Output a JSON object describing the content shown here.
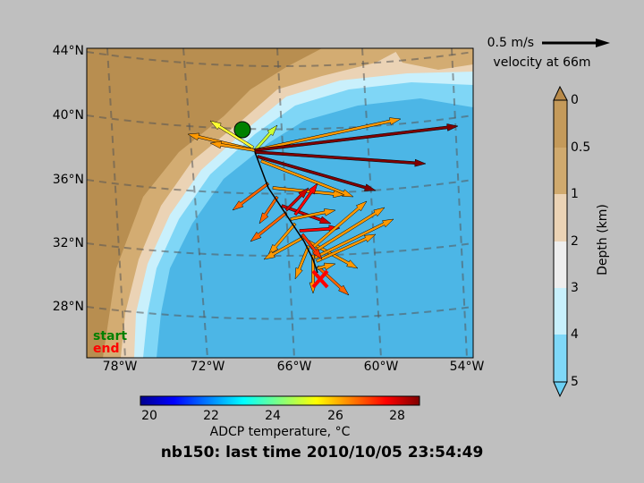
{
  "map": {
    "latitude_labels": [
      "44°N",
      "40°N",
      "36°N",
      "32°N",
      "28°N"
    ],
    "longitude_labels": [
      "78°W",
      "72°W",
      "66°W",
      "60°W",
      "54°W"
    ],
    "legend": {
      "start": "start",
      "end": "end"
    },
    "scale": {
      "label": "0.5 m/s",
      "caption": "velocity at 66m"
    },
    "depth_colorbar": {
      "label": "Depth (km)",
      "ticks": [
        "0",
        "0.5",
        "1",
        "2",
        "3",
        "4",
        "5"
      ]
    },
    "temperature_colorbar": {
      "label": "ADCP temperature, °C",
      "ticks": [
        "20",
        "22",
        "24",
        "26",
        "28"
      ]
    }
  },
  "title": "nb150: last time 2010/10/05 23:54:49"
}
